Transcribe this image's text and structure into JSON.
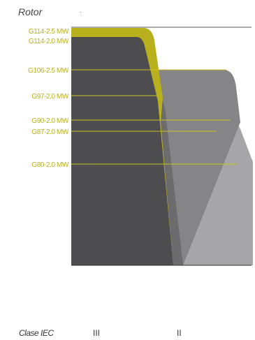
{
  "chart_data": {
    "type": "area",
    "title": "Rotor",
    "title_mark": ".",
    "xlabel": "Clase IEC",
    "x_ticks": [
      "III",
      "II"
    ],
    "series": [
      {
        "name": "G114-2.5 MW",
        "color": "#b9b01d"
      },
      {
        "name": "G114-2.0 MW",
        "color": "#4d4d4f"
      },
      {
        "name": "G106-2.5 MW",
        "color": "#858587"
      },
      {
        "name": "G97-2.0 MW",
        "color": "#6c6c6e"
      },
      {
        "name": "G90-2.0 MW",
        "color": "#a6a6a8"
      },
      {
        "name": "G87-2.0 MW",
        "color": "#d1d1d3"
      },
      {
        "name": "G80-2.0 MW",
        "color": "#e6e6e8"
      }
    ],
    "label_color": "#b9b01d",
    "line_color": "#c7be26",
    "grid": false
  }
}
